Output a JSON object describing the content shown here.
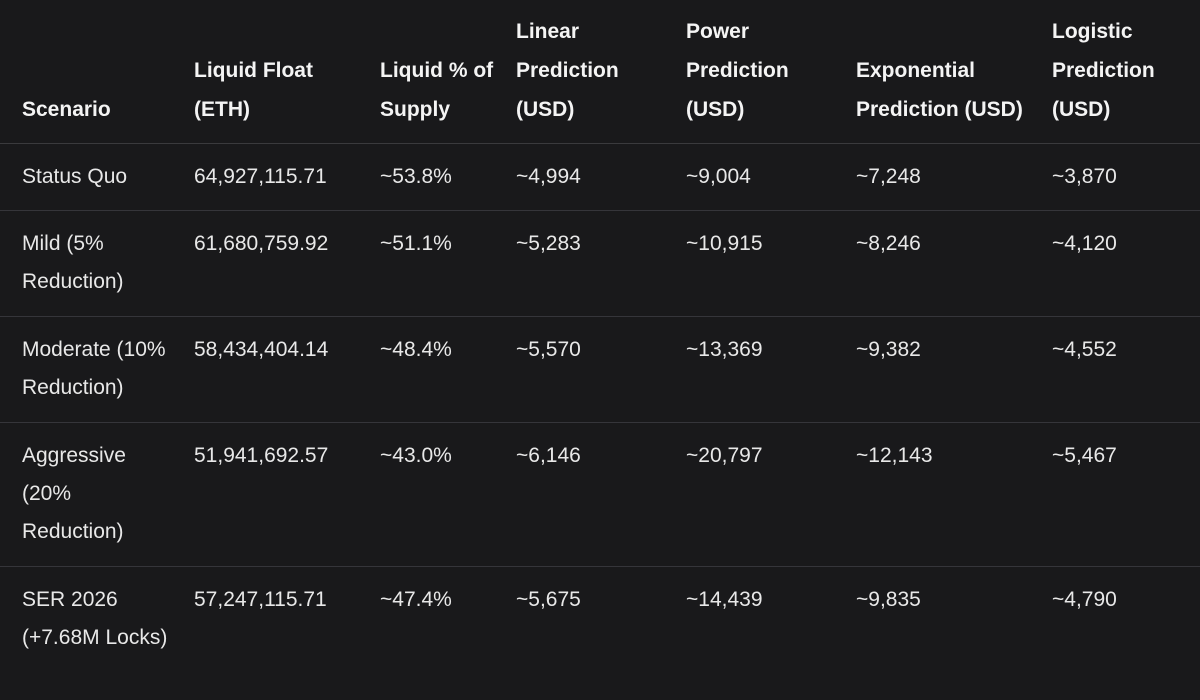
{
  "table": {
    "headers": {
      "scenario": "Scenario",
      "liquid_float": "Liquid Float (ETH)",
      "liquid_pct": "Liquid % of Supply",
      "linear": "Linear Prediction (USD)",
      "power": "Power Prediction (USD)",
      "exponential": "Exponential Prediction (USD)",
      "logistic": "Logistic Prediction (USD)"
    },
    "rows": [
      {
        "scenario": "Status Quo",
        "liquid_float": "64,927,115.71",
        "liquid_pct": "~53.8%",
        "linear": "~4,994",
        "power": "~9,004",
        "exponential": "~7,248",
        "logistic": "~3,870"
      },
      {
        "scenario": "Mild (5% Reduction)",
        "liquid_float": "61,680,759.92",
        "liquid_pct": "~51.1%",
        "linear": "~5,283",
        "power": "~10,915",
        "exponential": "~8,246",
        "logistic": "~4,120"
      },
      {
        "scenario": "Moderate (10% Reduction)",
        "liquid_float": "58,434,404.14",
        "liquid_pct": "~48.4%",
        "linear": "~5,570",
        "power": "~13,369",
        "exponential": "~9,382",
        "logistic": "~4,552"
      },
      {
        "scenario": "Aggressive (20% Reduction)",
        "liquid_float": "51,941,692.57",
        "liquid_pct": "~43.0%",
        "linear": "~6,146",
        "power": "~20,797",
        "exponential": "~12,143",
        "logistic": "~5,467"
      },
      {
        "scenario": "SER 2026 (+7.68M Locks)",
        "liquid_float": "57,247,115.71",
        "liquid_pct": "~47.4%",
        "linear": "~5,675",
        "power": "~14,439",
        "exponential": "~9,835",
        "logistic": "~4,790"
      }
    ]
  }
}
